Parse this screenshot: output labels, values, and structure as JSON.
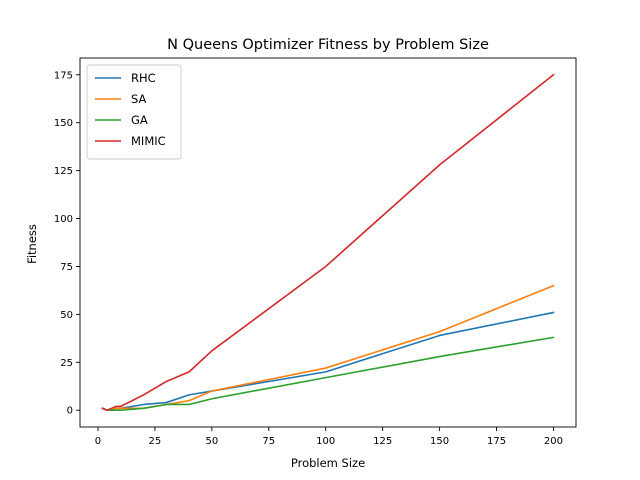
{
  "chart_data": {
    "type": "line",
    "title": "N Queens Optimizer Fitness by Problem Size",
    "xlabel": "Problem Size",
    "ylabel": "Fitness",
    "xlim": [
      -7.9,
      209.9
    ],
    "ylim": [
      -8.75,
      183.75
    ],
    "xticks": [
      0,
      25,
      50,
      75,
      100,
      125,
      150,
      175,
      200
    ],
    "yticks": [
      0,
      25,
      50,
      75,
      100,
      125,
      150,
      175
    ],
    "grid": false,
    "legend_position": "top-left",
    "series": [
      {
        "name": "RHC",
        "color": "#1f77b4",
        "x": [
          2,
          4,
          6,
          8,
          10,
          20,
          30,
          40,
          50,
          100,
          150,
          200
        ],
        "y": [
          1,
          0,
          0,
          1,
          1,
          3,
          4,
          8,
          10,
          20,
          39,
          51
        ]
      },
      {
        "name": "SA",
        "color": "#ff7f0e",
        "x": [
          2,
          4,
          6,
          8,
          10,
          20,
          30,
          40,
          50,
          100,
          150,
          200
        ],
        "y": [
          1,
          0,
          0,
          1,
          1,
          1,
          3,
          5,
          10,
          22,
          41,
          65
        ]
      },
      {
        "name": "GA",
        "color": "#2ca02c",
        "x": [
          2,
          4,
          6,
          8,
          10,
          20,
          30,
          40,
          50,
          100,
          150,
          200
        ],
        "y": [
          1,
          0,
          0,
          0,
          0,
          1,
          3,
          3,
          6,
          17,
          28,
          38
        ]
      },
      {
        "name": "MIMIC",
        "color": "#d62728",
        "x": [
          2,
          4,
          6,
          8,
          10,
          20,
          30,
          40,
          50,
          100,
          150,
          200
        ],
        "y": [
          1,
          0,
          1,
          2,
          2,
          8,
          15,
          20,
          31,
          75,
          128,
          175
        ]
      }
    ]
  }
}
